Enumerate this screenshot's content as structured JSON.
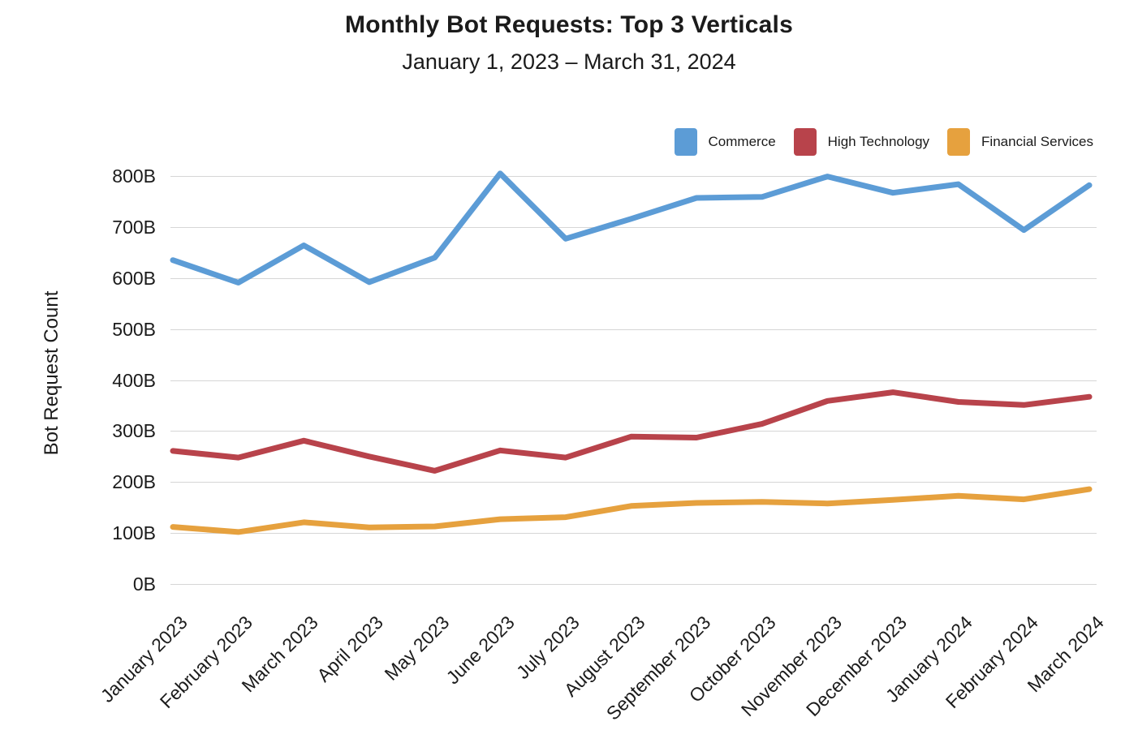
{
  "title": "Monthly Bot Requests: Top 3 Verticals",
  "subtitle": "January 1, 2023 – March 31, 2024",
  "y_axis_title": "Bot Request Count",
  "chart_data": {
    "type": "line",
    "title": "Monthly Bot Requests: Top 3 Verticals",
    "subtitle": "January 1, 2023 – March 31, 2024",
    "xlabel": "",
    "ylabel": "Bot Request Count",
    "ylim": [
      0,
      800
    ],
    "yticks": [
      "0B",
      "100B",
      "200B",
      "300B",
      "400B",
      "500B",
      "600B",
      "700B",
      "800B"
    ],
    "grid": "horizontal",
    "legend_position": "top-right",
    "categories": [
      "January 2023",
      "February 2023",
      "March 2023",
      "April 2023",
      "May 2023",
      "June 2023",
      "July 2023",
      "August 2023",
      "September 2023",
      "October 2023",
      "November 2023",
      "December 2023",
      "January 2024",
      "February 2024",
      "March 2024"
    ],
    "unit": "B",
    "series": [
      {
        "name": "Commerce",
        "color": "#5c9cd6",
        "values": [
          635,
          591,
          664,
          592,
          640,
          805,
          677,
          716,
          757,
          759,
          799,
          767,
          784,
          694,
          782
        ]
      },
      {
        "name": "High Technology",
        "color": "#b8434b",
        "values": [
          261,
          248,
          281,
          250,
          222,
          262,
          248,
          289,
          287,
          314,
          359,
          376,
          357,
          351,
          367
        ]
      },
      {
        "name": "Financial Services",
        "color": "#e6a13e",
        "values": [
          112,
          102,
          121,
          111,
          113,
          127,
          131,
          153,
          159,
          161,
          158,
          165,
          173,
          166,
          186
        ]
      }
    ]
  }
}
